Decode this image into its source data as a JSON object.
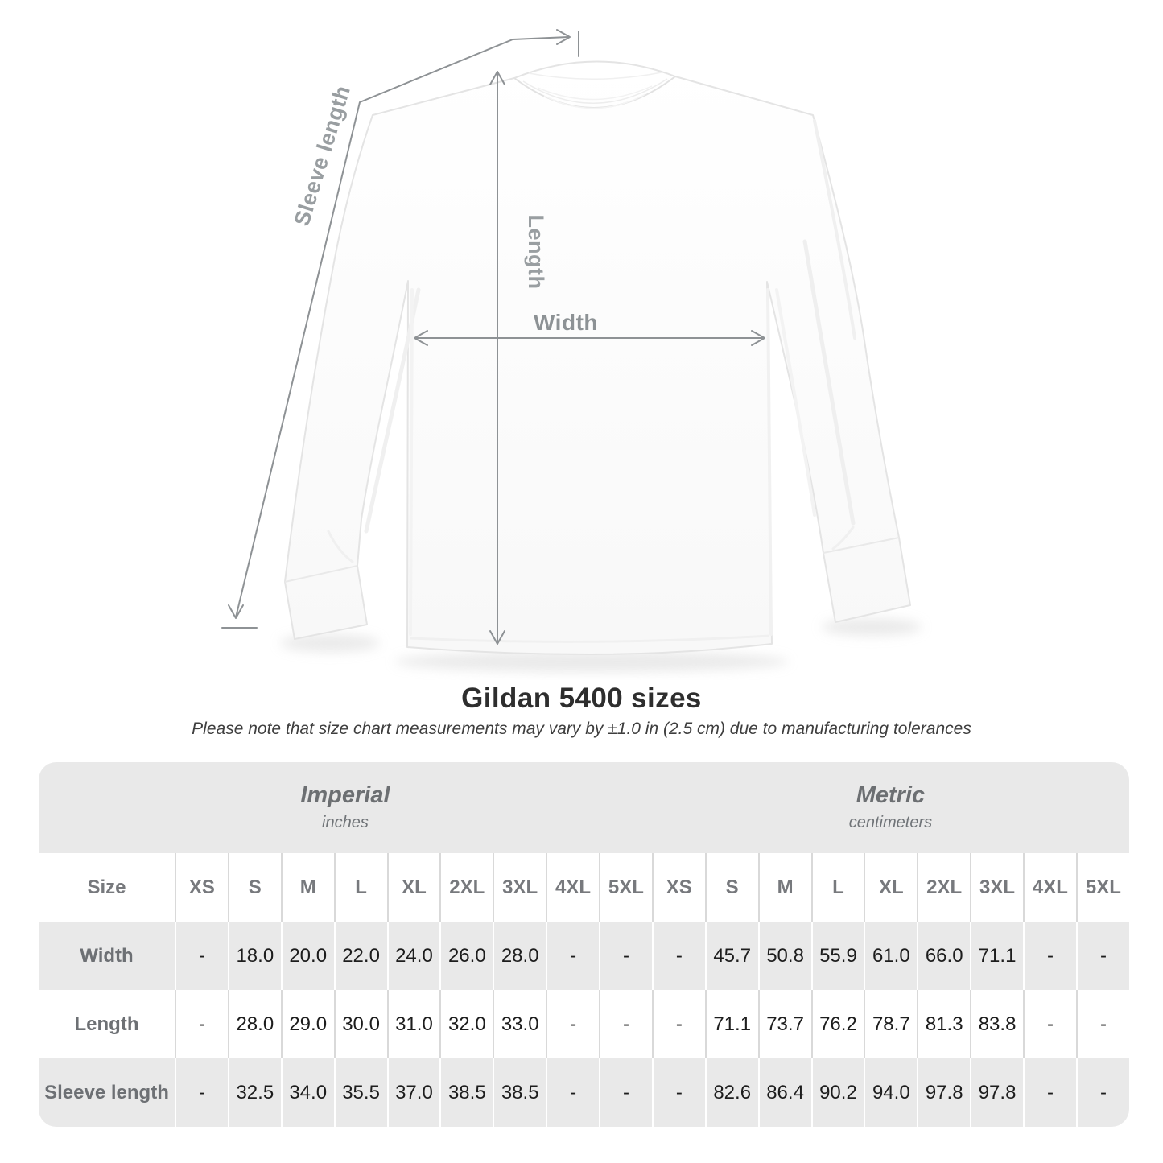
{
  "diagram": {
    "labels": {
      "sleeve_length": "Sleeve length",
      "length": "Length",
      "width": "Width"
    }
  },
  "heading": {
    "title": "Gildan 5400 sizes",
    "note": "Please note that size chart measurements may vary by ±1.0 in (2.5 cm) due to manufacturing tolerances"
  },
  "size_chart": {
    "corner_label": "Size",
    "unit_groups": [
      {
        "label": "Imperial",
        "unit": "inches"
      },
      {
        "label": "Metric",
        "unit": "centimeters"
      }
    ],
    "sizes": [
      "XS",
      "S",
      "M",
      "L",
      "XL",
      "2XL",
      "3XL",
      "4XL",
      "5XL"
    ],
    "rows": [
      {
        "label": "Width",
        "imperial": [
          "-",
          "18.0",
          "20.0",
          "22.0",
          "24.0",
          "26.0",
          "28.0",
          "-",
          "-"
        ],
        "metric": [
          "-",
          "45.7",
          "50.8",
          "55.9",
          "61.0",
          "66.0",
          "71.1",
          "-",
          "-"
        ]
      },
      {
        "label": "Length",
        "imperial": [
          "-",
          "28.0",
          "29.0",
          "30.0",
          "31.0",
          "32.0",
          "33.0",
          "-",
          "-"
        ],
        "metric": [
          "-",
          "71.1",
          "73.7",
          "76.2",
          "78.7",
          "81.3",
          "83.8",
          "-",
          "-"
        ]
      },
      {
        "label": "Sleeve length",
        "imperial": [
          "-",
          "32.5",
          "34.0",
          "35.5",
          "37.0",
          "38.5",
          "38.5",
          "-",
          "-"
        ],
        "metric": [
          "-",
          "82.6",
          "86.4",
          "90.2",
          "94.0",
          "97.8",
          "97.8",
          "-",
          "-"
        ]
      }
    ]
  },
  "colors": {
    "band_gray": "#e9e9e9",
    "separator_on_white": "#d9d9d9",
    "separator_on_gray": "#ffffff",
    "header_text": "#6d7074",
    "value_text": "#1d1d1d",
    "annotation_gray": "#8e9295",
    "title_text": "#2e2e2e"
  }
}
